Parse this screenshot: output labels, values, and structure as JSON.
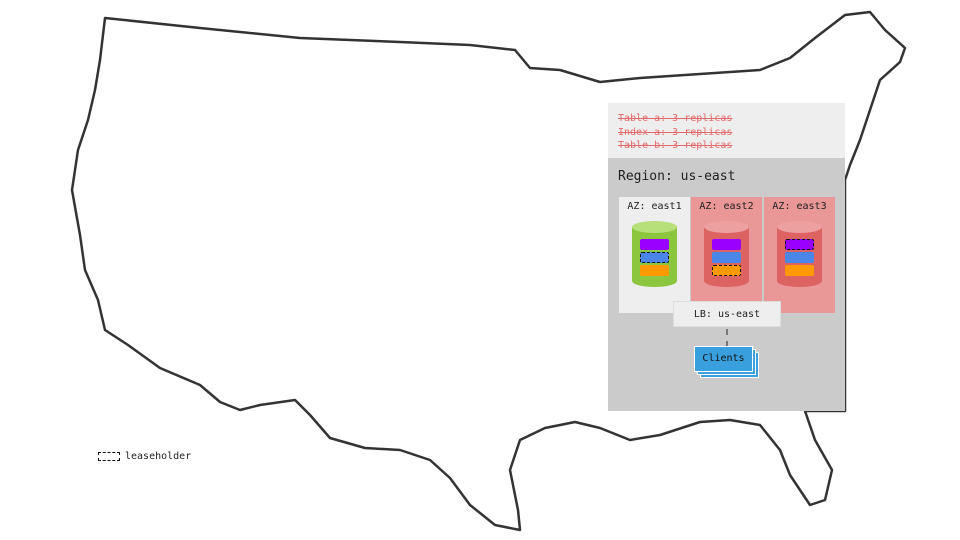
{
  "struck_lines": [
    "Table a: 3 replicas",
    "Index a: 3 replicas",
    "Table b: 3 replicas"
  ],
  "region": "Region: us-east",
  "zones": [
    {
      "label": "AZ: east1",
      "status": "up",
      "leaseholder": "blue"
    },
    {
      "label": "AZ: east2",
      "status": "down",
      "leaseholder": "orange"
    },
    {
      "label": "AZ: east3",
      "status": "down",
      "leaseholder": "purple"
    }
  ],
  "lb": "LB: us-east",
  "clients": "Clients",
  "legend": "leaseholder",
  "colors": {
    "up_zone": "#eeeeee",
    "down_zone": "#e99797",
    "up_db": "#8cc63f",
    "down_db": "#dd6363",
    "purple": "#9900ff",
    "blue": "#4a86e8",
    "orange": "#ff9900",
    "clients": "#3aa0dd"
  }
}
